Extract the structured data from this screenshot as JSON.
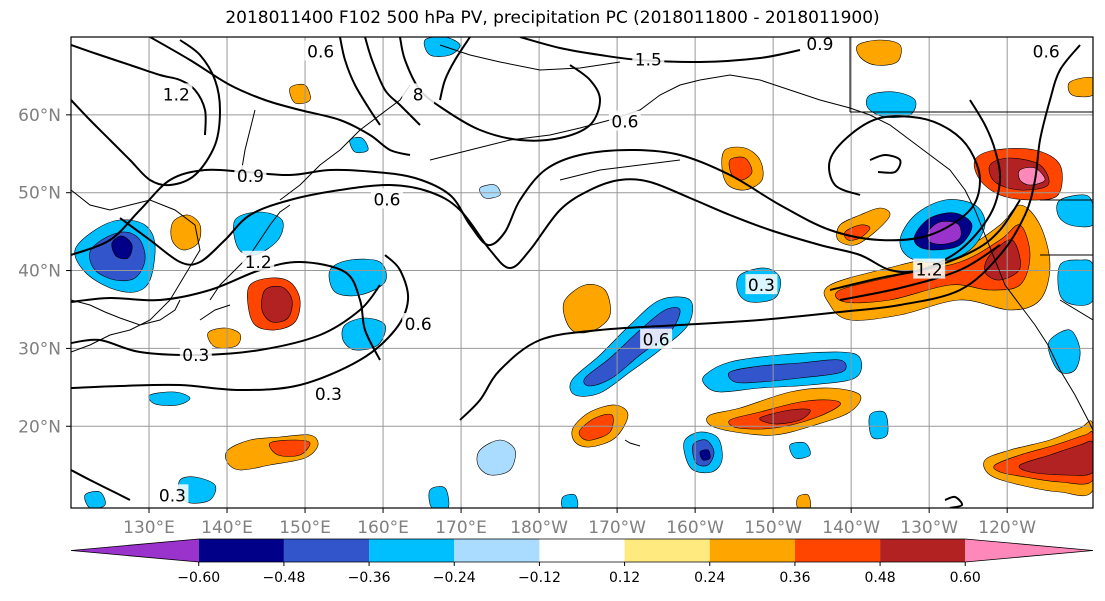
{
  "title": "2018011400 F102 500 hPa PV, precipitation PC (2018011800 - 2018011900)",
  "chart_data": {
    "type": "contour map",
    "projection": "lat-lon",
    "grid": true,
    "x_ticks": [
      {
        "lon": 130,
        "label": "130°E"
      },
      {
        "lon": 140,
        "label": "140°E"
      },
      {
        "lon": 150,
        "label": "150°E"
      },
      {
        "lon": 160,
        "label": "160°E"
      },
      {
        "lon": 170,
        "label": "170°E"
      },
      {
        "lon": 180,
        "label": "180°W"
      },
      {
        "lon": 190,
        "label": "170°W"
      },
      {
        "lon": 200,
        "label": "160°W"
      },
      {
        "lon": 210,
        "label": "150°W"
      },
      {
        "lon": 220,
        "label": "140°W"
      },
      {
        "lon": 230,
        "label": "130°W"
      },
      {
        "lon": 240,
        "label": "120°W"
      }
    ],
    "y_ticks": [
      {
        "lat": 20,
        "label": "20°N"
      },
      {
        "lat": 30,
        "label": "30°N"
      },
      {
        "lat": 40,
        "label": "40°N"
      },
      {
        "lat": 50,
        "label": "50°N"
      },
      {
        "lat": 60,
        "label": "60°N"
      }
    ],
    "colorbar": {
      "ticks": [
        "−0.60",
        "−0.48",
        "−0.36",
        "−0.24",
        "−0.12",
        "0.12",
        "0.24",
        "0.36",
        "0.48",
        "0.60"
      ],
      "colors": [
        "#9933cc",
        "#000088",
        "#3355cc",
        "#00bfff",
        "#aadcff",
        "#ffffff",
        "#ffea80",
        "#ffa500",
        "#ff4500",
        "#b22222",
        "#ff88bb"
      ],
      "extend": "both"
    },
    "contour_labels": [
      {
        "text": "0.6",
        "lon": 152,
        "lat": 68
      },
      {
        "text": "1.2",
        "lon": 133.5,
        "lat": 62.5
      },
      {
        "text": "0.9",
        "lon": 143,
        "lat": 52
      },
      {
        "text": "1.2",
        "lon": 144,
        "lat": 41
      },
      {
        "text": "0.6",
        "lon": 160.5,
        "lat": 49
      },
      {
        "text": "0.6",
        "lon": 164.5,
        "lat": 33
      },
      {
        "text": "0.3",
        "lon": 136,
        "lat": 29
      },
      {
        "text": "0.3",
        "lon": 153,
        "lat": 24
      },
      {
        "text": "0.3",
        "lon": 133,
        "lat": 11
      },
      {
        "text": "8",
        "lon": 164.5,
        "lat": 62.5
      },
      {
        "text": "1.5",
        "lon": 194,
        "lat": 67
      },
      {
        "text": "0.6",
        "lon": 191,
        "lat": 59
      },
      {
        "text": "0.9",
        "lon": 216,
        "lat": 69
      },
      {
        "text": "0.6",
        "lon": 245,
        "lat": 68
      },
      {
        "text": "0.3",
        "lon": 208.5,
        "lat": 38
      },
      {
        "text": "0.6",
        "lon": 195,
        "lat": 31
      },
      {
        "text": "1.2",
        "lon": 230,
        "lat": 40
      }
    ],
    "features": [
      "PV contours (black lines) at 0.3 PVU intervals",
      "positive precipitation PC anomaly band along ~35–45°N, 135–120°W",
      "negative anomaly centre near 45°N, 130°W",
      "negative anomaly near 42°N, 134°E",
      "positive anomaly near 35°N, 148°E"
    ]
  }
}
